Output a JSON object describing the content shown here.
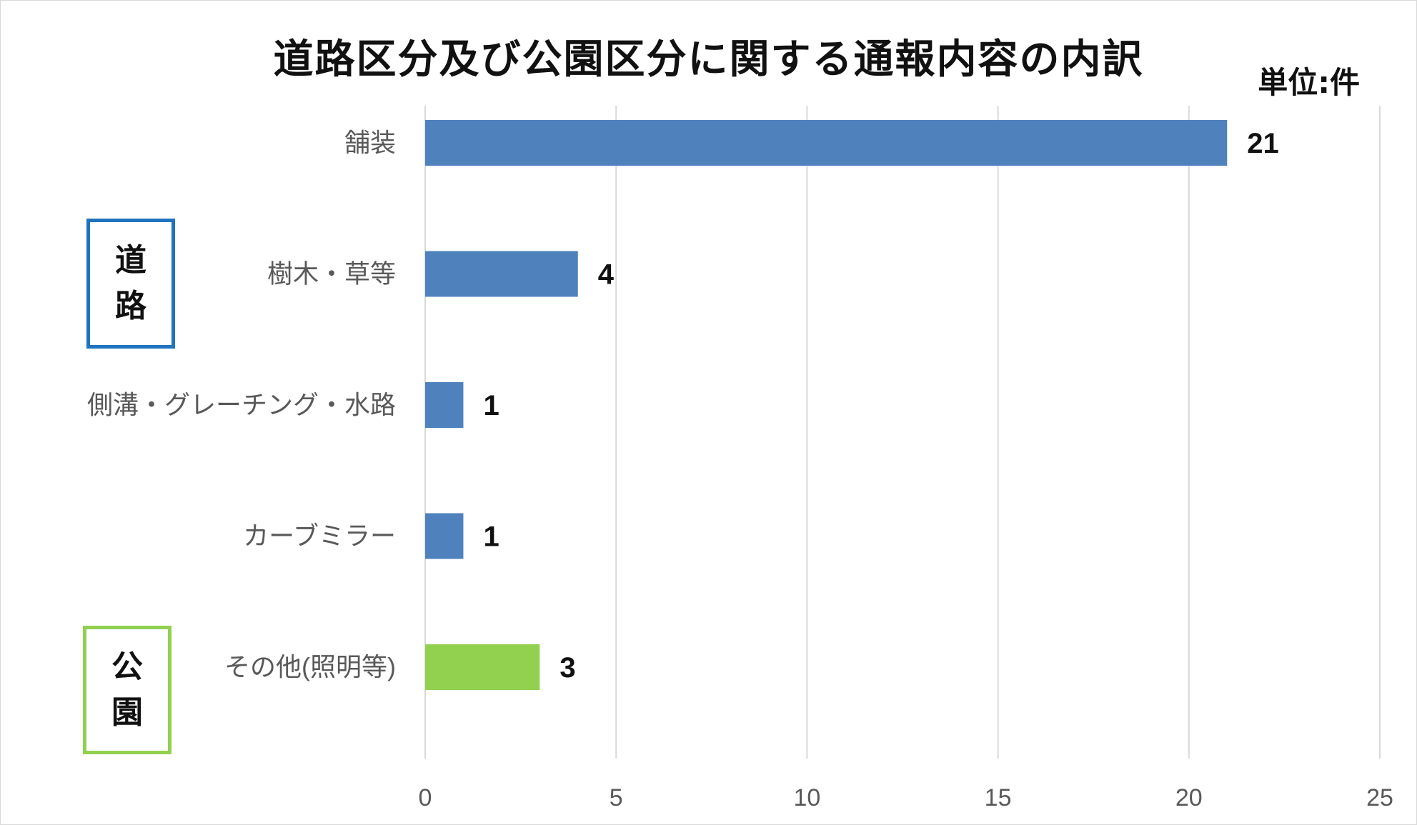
{
  "chart_data": {
    "type": "bar",
    "orientation": "horizontal",
    "title": "道路区分及び公園区分に関する通報内容の内訳",
    "unit_label": "単位:件",
    "categories": [
      "舗装",
      "樹木・草等",
      "側溝・グレーチング・水路",
      "カーブミラー",
      "その他(照明等)"
    ],
    "values": [
      21,
      4,
      1,
      1,
      3
    ],
    "bar_colors": [
      "#4f81bd",
      "#4f81bd",
      "#4f81bd",
      "#4f81bd",
      "#92d050"
    ],
    "xlim": [
      0,
      25
    ],
    "x_ticks": [
      0,
      5,
      10,
      15,
      20,
      25
    ],
    "grid": true,
    "group_labels": [
      {
        "label": "道路",
        "chars": [
          "道",
          "路"
        ],
        "color": "#1f73bf"
      },
      {
        "label": "公園",
        "chars": [
          "公",
          "園"
        ],
        "color": "#92d050"
      }
    ]
  }
}
